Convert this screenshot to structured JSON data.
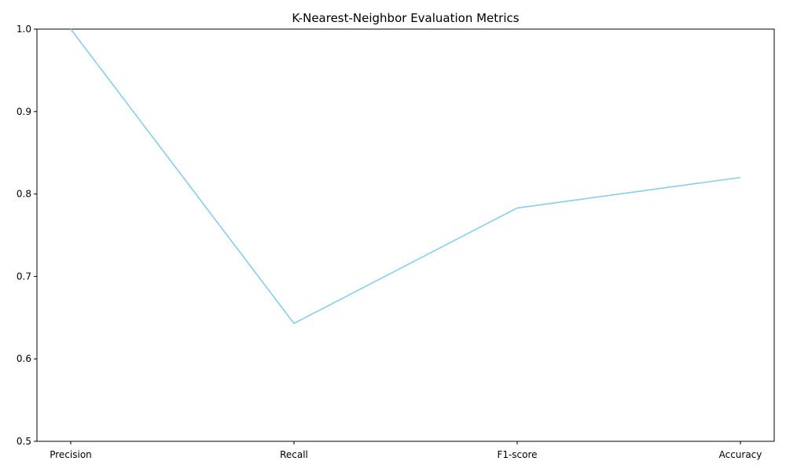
{
  "chart_data": {
    "type": "line",
    "title": "K-Nearest-Neighbor Evaluation Metrics",
    "xlabel": "",
    "ylabel": "",
    "categories": [
      "Precision",
      "Recall",
      "F1-score",
      "Accuracy"
    ],
    "series": [
      {
        "values": [
          1.0,
          0.643,
          0.783,
          0.82
        ],
        "color": "#87ceeb"
      }
    ],
    "ylim": [
      0.5,
      1.0
    ],
    "yticks": [
      0.5,
      0.6,
      0.7,
      0.8,
      0.9,
      1.0
    ],
    "ytick_labels": [
      "0.5",
      "0.6",
      "0.7",
      "0.8",
      "0.9",
      "1.0"
    ],
    "grid": false,
    "legend": "none"
  }
}
